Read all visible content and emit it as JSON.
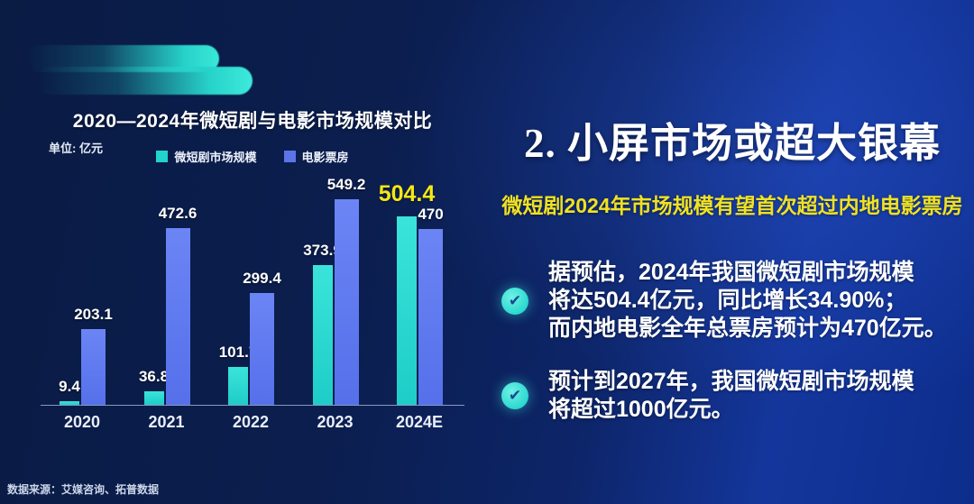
{
  "chart": {
    "title": "2020—2024年微短剧与电影市场规模对比",
    "unit_label": "单位: 亿元"
  },
  "chart_data": {
    "type": "bar",
    "title": "2020—2024年微短剧与电影市场规模对比",
    "unit": "亿元",
    "categories": [
      "2020",
      "2021",
      "2022",
      "2023",
      "2024E"
    ],
    "series": [
      {
        "name": "微短剧市场规模",
        "color": "#22d3cd",
        "values": [
          9.4,
          36.8,
          101.7,
          373.9,
          504.4
        ]
      },
      {
        "name": "电影票房",
        "color": "#5b74e8",
        "values": [
          203.1,
          472.6,
          299.4,
          549.2,
          470
        ]
      }
    ],
    "ylim": [
      0,
      580
    ],
    "grid": false,
    "legend_position": "top",
    "highlight": {
      "series": "微短剧市场规模",
      "category": "2024E",
      "label_color": "#f5e716"
    }
  },
  "right_panel": {
    "title": "2. 小屏市场或超大银幕",
    "subtitle": "微短剧2024年市场规模有望首次超过内地电影票房",
    "bullets": [
      {
        "icon": "check",
        "lines": [
          "据预估，2024年我国微短剧市场规模",
          "将达504.4亿元，同比增长34.90%；",
          "而内地电影全年总票房预计为470亿元。"
        ]
      },
      {
        "icon": "check",
        "lines": [
          "预计到2027年，我国微短剧市场规模",
          "将超过1000亿元。"
        ]
      }
    ],
    "check_icon_color": "#2cd8cf"
  },
  "footer": {
    "source": "数据来源：艾媒咨询、拓普数据"
  },
  "colors": {
    "background_left": "#0a1b44",
    "background_right": "#14369c",
    "accent_teal": "#22d3cd",
    "accent_blue": "#5b74e8",
    "highlight_yellow": "#f5e716"
  }
}
